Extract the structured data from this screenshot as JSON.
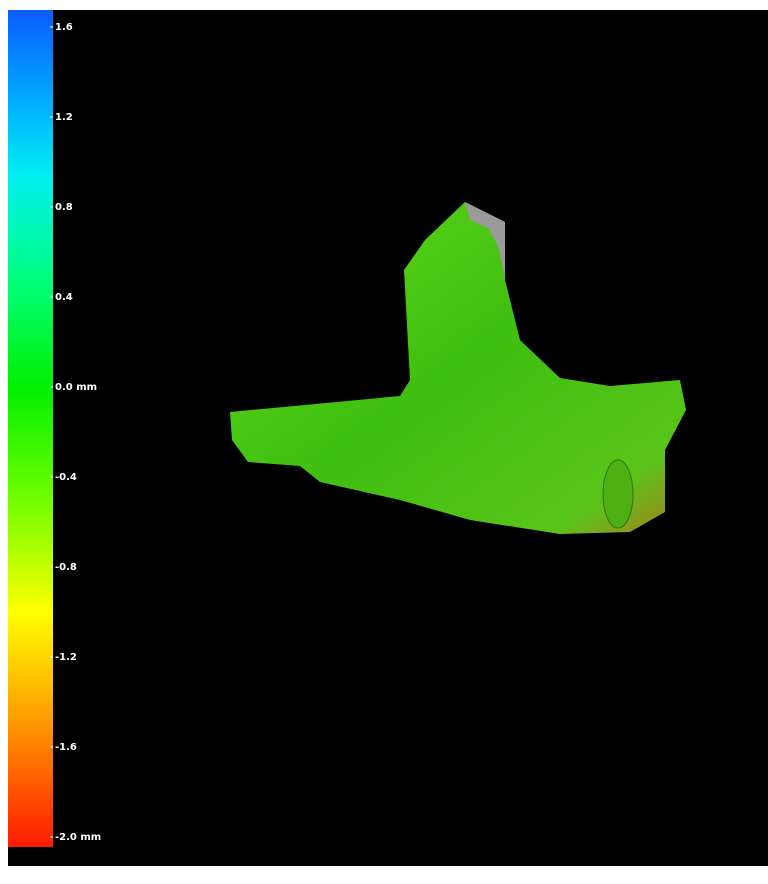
{
  "colorbar": {
    "range": [
      -2.0,
      1.6
    ],
    "ticks": [
      1.6,
      1.2,
      0.8,
      0.4,
      {
        "value": 0,
        "label": "0.0 mm"
      },
      -0.4,
      -0.8,
      -1.2,
      -1.6,
      {
        "value": -2.0,
        "label": "-2.0 mm"
      }
    ]
  }
}
